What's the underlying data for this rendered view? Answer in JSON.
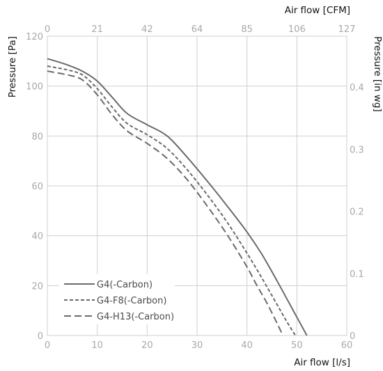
{
  "chart_data": {
    "type": "line",
    "xlabel": "Air flow [l/s]",
    "ylabel": "Pressure [Pa]",
    "x2label": "Air flow [CFM]",
    "y2label": "Pressure [in wg]",
    "xlim": [
      0,
      60
    ],
    "ylim": [
      0,
      120
    ],
    "x_ticks": [
      "0",
      "10",
      "20",
      "30",
      "40",
      "50",
      "60"
    ],
    "y_ticks": [
      "0",
      "20",
      "40",
      "60",
      "80",
      "100",
      "120"
    ],
    "x2_ticks": [
      "0",
      "21",
      "42",
      "64",
      "85",
      "106",
      "127"
    ],
    "y2_ticks": [
      {
        "label": "0",
        "value": 0
      },
      {
        "label": "0.1",
        "value": 24.9
      },
      {
        "label": "0.2",
        "value": 49.8
      },
      {
        "label": "0.3",
        "value": 74.7
      },
      {
        "label": "0.4",
        "value": 99.6
      }
    ],
    "grid": true,
    "legend_position": "bottom-left",
    "series": [
      {
        "name": "G4(-Carbon)",
        "dash": "solid",
        "x": [
          0,
          4,
          7,
          10,
          13,
          16,
          20,
          24,
          28,
          32,
          36,
          40,
          43,
          46,
          49,
          52
        ],
        "y": [
          111,
          108.5,
          106,
          102,
          95.5,
          89,
          84.5,
          80,
          71.5,
          62,
          52,
          41.5,
          32.5,
          22,
          11,
          0
        ]
      },
      {
        "name": "G4-F8(-Carbon)",
        "dash": "dotted",
        "x": [
          0,
          4,
          7,
          10,
          13,
          16,
          20,
          24,
          28,
          32,
          36,
          40,
          43,
          46,
          48,
          49.7
        ],
        "y": [
          108,
          106.5,
          104.5,
          99,
          91.5,
          85,
          80.5,
          75,
          66.5,
          56.5,
          45.5,
          33,
          23,
          12.5,
          5.5,
          0
        ]
      },
      {
        "name": "G4-H13(-Carbon)",
        "dash": "dashed",
        "x": [
          0,
          4,
          7,
          10,
          13,
          16,
          20,
          24,
          28,
          32,
          36,
          40,
          42,
          44,
          46,
          47.2
        ],
        "y": [
          106,
          104.5,
          102.5,
          96.5,
          88.5,
          82,
          77,
          71,
          62.5,
          52,
          40.5,
          27.5,
          20,
          13,
          5,
          0
        ]
      }
    ]
  },
  "colors": {
    "series": "#6a6a6a",
    "grid": "#cfcfcf",
    "tick_text": "#a8a8a8",
    "axis_text": "#111111"
  }
}
